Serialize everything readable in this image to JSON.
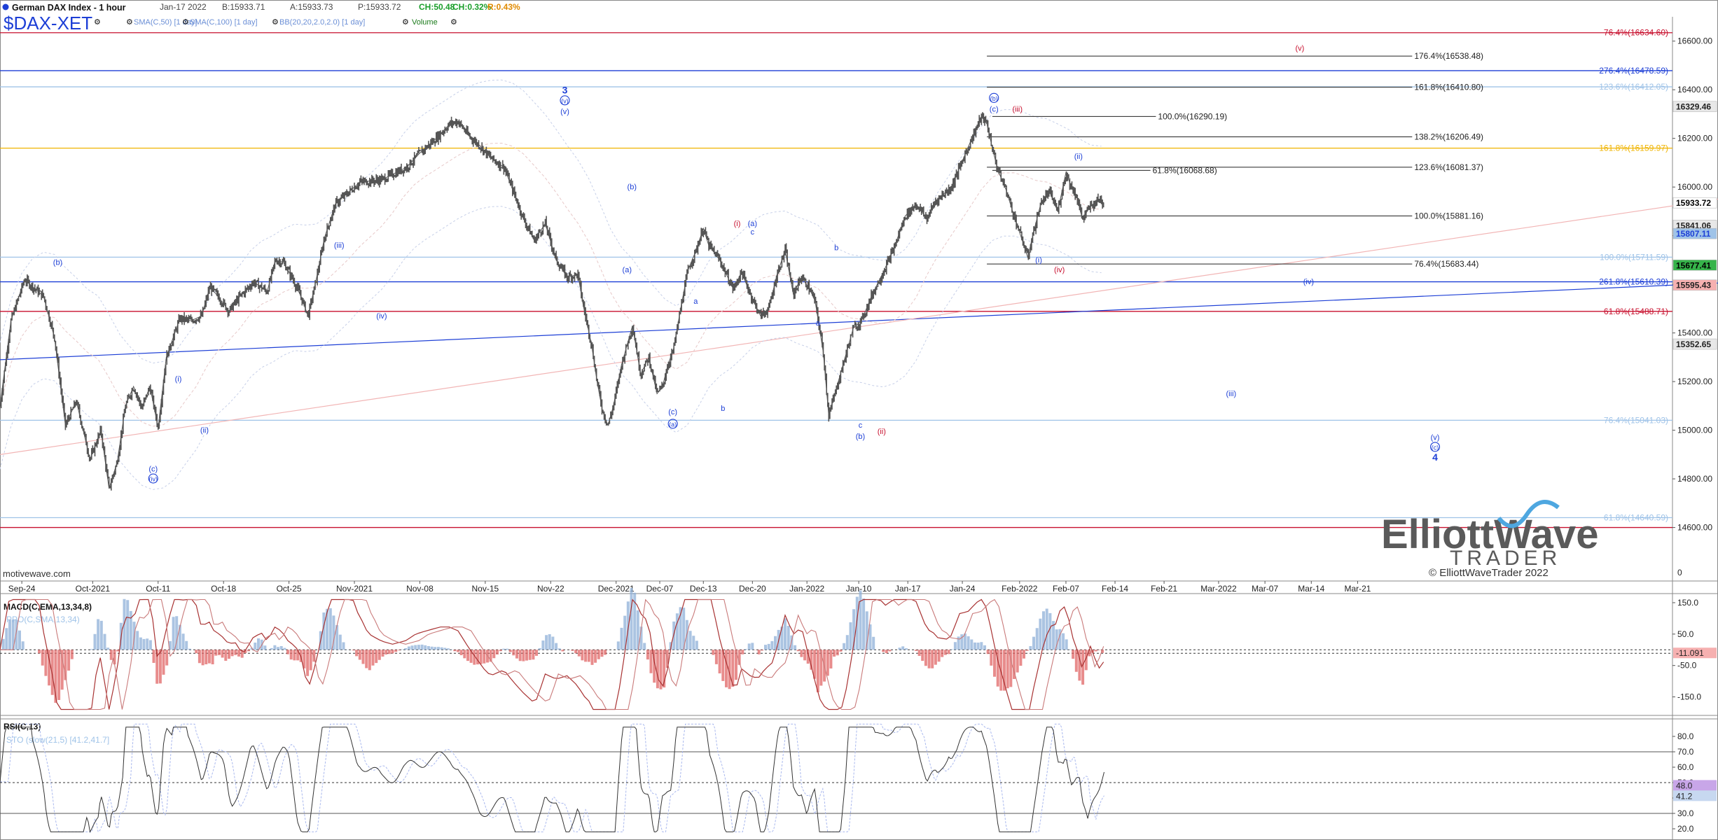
{
  "header": {
    "instrument": "German DAX Index - 1 hour",
    "date": "Jan-17 2022",
    "bid": "B:15933.71",
    "ask": "A:15933.73",
    "price": "P:15933.72",
    "change": "CH:50.48",
    "change_pct": "CH:0.32%",
    "range": "R:0.43%",
    "symbol": "$DAX-XET",
    "studies": [
      "SMA(C,50) [1 day]",
      "SMA(C,100) [1 day]",
      "BB(20,20,2.0,2.0) [1 day]",
      "Volume"
    ]
  },
  "watermark": "motivewave.com",
  "logo": {
    "line1": "ElliottWave",
    "line2": "TRADER",
    "copyright": "© ElliottWaveTrader 2022"
  },
  "colors": {
    "price": "#555555",
    "blue": "#1d3fd6",
    "red": "#c8102e",
    "orange": "#f0b400",
    "light_blue": "#9fc3e8",
    "pink": "#f2b5b5"
  },
  "chart_data": {
    "type": "line",
    "title": "German DAX Index - 1 hour",
    "price_axis": {
      "ylim": [
        14380,
        16700
      ],
      "ticks": [
        14600,
        14800,
        15000,
        15200,
        15400,
        15600,
        15800,
        16000,
        16200,
        16400,
        16600
      ],
      "tick_labels": [
        "14600.00",
        "14800.00",
        "15000.00",
        "15200.00",
        "15400.00",
        "15600.00",
        "15800.00",
        "16000.00",
        "16200.00",
        "16400.00",
        "16600.00"
      ],
      "badges": [
        {
          "value": 16329.46,
          "label": "16329.46",
          "color": "#e8e8e8",
          "text_color": "#222222"
        },
        {
          "value": 15933.72,
          "label": "15933.72",
          "color": "#ffffff",
          "text_color": "#000000"
        },
        {
          "value": 15841.06,
          "label": "15841.06",
          "color": "#e8e8e8",
          "text_color": "#222222"
        },
        {
          "value": 15807.11,
          "label": "15807.11",
          "color": "#9fc3e8",
          "text_color": "#1d3fd6"
        },
        {
          "value": 15677.41,
          "label": "15677.41",
          "color": "#36b34a",
          "text_color": "#000000"
        },
        {
          "value": 15595.43,
          "label": "15595.43",
          "color": "#f6b0b0",
          "text_color": "#222222"
        },
        {
          "value": 15352.65,
          "label": "15352.65",
          "color": "#e8e8e8",
          "text_color": "#222222"
        }
      ]
    },
    "time_axis": {
      "labels": [
        "Sep-24",
        "Oct-2021",
        "Oct-11",
        "Oct-18",
        "Oct-25",
        "Nov-2021",
        "Nov-08",
        "Nov-15",
        "Nov-22",
        "Dec-2021",
        "Dec-07",
        "Dec-13",
        "Dec-20",
        "Jan-2022",
        "Jan-10",
        "Jan-17",
        "Jan-24",
        "Feb-2022",
        "Feb-07",
        "Feb-14",
        "Feb-21",
        "Mar-2022",
        "Mar-07",
        "Mar-14",
        "Mar-21"
      ],
      "index": [
        40,
        170,
        290,
        410,
        530,
        650,
        770,
        890,
        1010,
        1130,
        1210,
        1290,
        1380,
        1480,
        1575,
        1665,
        1765,
        1870,
        1955,
        2045,
        2135,
        2235,
        2320,
        2405,
        2490
      ]
    },
    "price_series": {
      "name": "DAX",
      "points": [
        [
          0,
          15100
        ],
        [
          20,
          15450
        ],
        [
          45,
          15620
        ],
        [
          80,
          15550
        ],
        [
          100,
          15380
        ],
        [
          120,
          15020
        ],
        [
          140,
          15120
        ],
        [
          165,
          14880
        ],
        [
          185,
          15000
        ],
        [
          200,
          14760
        ],
        [
          215,
          14870
        ],
        [
          230,
          15100
        ],
        [
          245,
          15180
        ],
        [
          260,
          15090
        ],
        [
          275,
          15180
        ],
        [
          290,
          15010
        ],
        [
          305,
          15300
        ],
        [
          330,
          15460
        ],
        [
          350,
          15450
        ],
        [
          370,
          15470
        ],
        [
          385,
          15590
        ],
        [
          400,
          15550
        ],
        [
          420,
          15490
        ],
        [
          440,
          15550
        ],
        [
          465,
          15610
        ],
        [
          490,
          15570
        ],
        [
          505,
          15700
        ],
        [
          520,
          15690
        ],
        [
          535,
          15630
        ],
        [
          550,
          15560
        ],
        [
          565,
          15470
        ],
        [
          580,
          15620
        ],
        [
          595,
          15790
        ],
        [
          615,
          15930
        ],
        [
          640,
          15980
        ],
        [
          660,
          16020
        ],
        [
          700,
          16030
        ],
        [
          745,
          16080
        ],
        [
          770,
          16140
        ],
        [
          800,
          16200
        ],
        [
          825,
          16260
        ],
        [
          840,
          16270
        ],
        [
          860,
          16210
        ],
        [
          880,
          16170
        ],
        [
          900,
          16120
        ],
        [
          925,
          16080
        ],
        [
          960,
          15870
        ],
        [
          980,
          15780
        ],
        [
          1000,
          15850
        ],
        [
          1020,
          15700
        ],
        [
          1040,
          15630
        ],
        [
          1060,
          15640
        ],
        [
          1070,
          15510
        ],
        [
          1085,
          15350
        ],
        [
          1095,
          15200
        ],
        [
          1105,
          15080
        ],
        [
          1115,
          15020
        ],
        [
          1125,
          15100
        ],
        [
          1140,
          15270
        ],
        [
          1160,
          15430
        ],
        [
          1175,
          15230
        ],
        [
          1190,
          15300
        ],
        [
          1205,
          15150
        ],
        [
          1215,
          15180
        ],
        [
          1225,
          15270
        ],
        [
          1235,
          15330
        ],
        [
          1250,
          15520
        ],
        [
          1262,
          15660
        ],
        [
          1275,
          15730
        ],
        [
          1290,
          15830
        ],
        [
          1300,
          15760
        ],
        [
          1320,
          15700
        ],
        [
          1345,
          15580
        ],
        [
          1360,
          15650
        ],
        [
          1380,
          15540
        ],
        [
          1395,
          15470
        ],
        [
          1410,
          15500
        ],
        [
          1425,
          15640
        ],
        [
          1440,
          15740
        ],
        [
          1455,
          15560
        ],
        [
          1470,
          15630
        ],
        [
          1485,
          15580
        ],
        [
          1495,
          15530
        ],
        [
          1510,
          15320
        ],
        [
          1520,
          15060
        ],
        [
          1530,
          15140
        ],
        [
          1545,
          15260
        ],
        [
          1565,
          15420
        ],
        [
          1580,
          15450
        ],
        [
          1600,
          15560
        ],
        [
          1620,
          15650
        ],
        [
          1640,
          15750
        ],
        [
          1660,
          15880
        ],
        [
          1680,
          15930
        ],
        [
          1700,
          15870
        ],
        [
          1715,
          15940
        ],
        [
          1730,
          15970
        ],
        [
          1745,
          16000
        ],
        [
          1760,
          16080
        ],
        [
          1775,
          16160
        ],
        [
          1790,
          16240
        ],
        [
          1800,
          16290
        ],
        [
          1810,
          16260
        ],
        [
          1820,
          16160
        ],
        [
          1830,
          16070
        ],
        [
          1845,
          15990
        ],
        [
          1860,
          15880
        ],
        [
          1875,
          15780
        ],
        [
          1885,
          15710
        ],
        [
          1895,
          15810
        ],
        [
          1910,
          15940
        ],
        [
          1925,
          15980
        ],
        [
          1940,
          15900
        ],
        [
          1955,
          16060
        ],
        [
          1965,
          16000
        ],
        [
          1975,
          15960
        ],
        [
          1985,
          15870
        ],
        [
          2000,
          15920
        ],
        [
          2015,
          15950
        ],
        [
          2025,
          15933.72
        ]
      ]
    },
    "horizontal_levels": [
      {
        "value": 16634.6,
        "label": "76.4%(16634.60)",
        "color": "#c8102e",
        "style": "solid"
      },
      {
        "value": 16478.59,
        "label": "276.4%(16478.59)",
        "color": "#1d3fd6",
        "style": "solid"
      },
      {
        "value": 16412.05,
        "label": "123.6%(16412.05)",
        "color": "#9fc3e8",
        "style": "solid"
      },
      {
        "value": 16159.97,
        "label": "161.8%(16159.97)",
        "color": "#f0b400",
        "style": "solid"
      },
      {
        "value": 15711.59,
        "label": "100.0%(15711.59)",
        "color": "#9fc3e8",
        "style": "solid"
      },
      {
        "value": 15610.39,
        "label": "261.8%(15610.39)",
        "color": "#1d3fd6",
        "style": "solid"
      },
      {
        "value": 15488.71,
        "label": "61.8%(15488.71)",
        "color": "#c8102e",
        "style": "solid"
      },
      {
        "value": 15041.03,
        "label": "76.4%(15041.03)",
        "color": "#9fc3e8",
        "style": "solid"
      },
      {
        "value": 14640.59,
        "label": "61.8%(14640.59)",
        "color": "#9fc3e8",
        "style": "solid"
      },
      {
        "value": 14600.0,
        "label": "",
        "color": "#c8102e",
        "style": "solid"
      }
    ],
    "fib_lines": [
      {
        "x1": 1810,
        "x2": 2590,
        "value": 16538.48,
        "label": "176.4%(16538.48)"
      },
      {
        "x1": 1810,
        "x2": 2590,
        "value": 16410.8,
        "label": "161.8%(16410.80)"
      },
      {
        "x1": 1820,
        "x2": 2120,
        "value": 16290.19,
        "label": "100.0%(16290.19)"
      },
      {
        "x1": 1810,
        "x2": 2590,
        "value": 16206.49,
        "label": "138.2%(16206.49)"
      },
      {
        "x1": 1810,
        "x2": 2590,
        "value": 16081.37,
        "label": "123.6%(16081.37)"
      },
      {
        "x1": 1820,
        "x2": 2110,
        "value": 16068.68,
        "label": "61.8%(16068.68)"
      },
      {
        "x1": 1810,
        "x2": 2590,
        "value": 15881.16,
        "label": "100.0%(15881.16)"
      },
      {
        "x1": 1810,
        "x2": 2590,
        "value": 15683.44,
        "label": "76.4%(15683.44)"
      }
    ],
    "trendlines": [
      {
        "x1": 0,
        "y1": 15290,
        "x2": 3300,
        "y2": 15620,
        "color": "#1d3fd6"
      },
      {
        "x1": 0,
        "y1": 14900,
        "x2": 3300,
        "y2": 16000,
        "color": "#f2b5b5"
      }
    ],
    "wave_labels": [
      {
        "x": 106,
        "v": 15680,
        "text": "(b)",
        "color": "blue"
      },
      {
        "x": 327,
        "v": 15200,
        "text": "(i)",
        "color": "blue"
      },
      {
        "x": 375,
        "v": 14990,
        "text": "(ii)",
        "color": "blue"
      },
      {
        "x": 281,
        "v": 14830,
        "text": "(c)",
        "color": "blue"
      },
      {
        "x": 281,
        "v": 14790,
        "text": "(iv)",
        "color": "blue",
        "circle": true
      },
      {
        "x": 622,
        "v": 15750,
        "text": "(iii)",
        "color": "blue"
      },
      {
        "x": 700,
        "v": 15460,
        "text": "(iv)",
        "color": "blue"
      },
      {
        "x": 1036,
        "v": 16385,
        "text": "3",
        "color": "blue",
        "bold": true
      },
      {
        "x": 1036,
        "v": 16345,
        "text": "(v)",
        "color": "blue",
        "circle": true
      },
      {
        "x": 1036,
        "v": 16300,
        "text": "(v)",
        "color": "blue"
      },
      {
        "x": 1159,
        "v": 15990,
        "text": "(b)",
        "color": "blue"
      },
      {
        "x": 1150,
        "v": 15650,
        "text": "(a)",
        "color": "blue"
      },
      {
        "x": 1234,
        "v": 15065,
        "text": "(c)",
        "color": "blue"
      },
      {
        "x": 1234,
        "v": 15015,
        "text": "(a)",
        "color": "blue",
        "circle": true
      },
      {
        "x": 1276,
        "v": 15520,
        "text": "a",
        "color": "blue"
      },
      {
        "x": 1326,
        "v": 15080,
        "text": "b",
        "color": "blue"
      },
      {
        "x": 1352,
        "v": 15840,
        "text": "(i)",
        "color": "red"
      },
      {
        "x": 1380,
        "v": 15840,
        "text": "(a)",
        "color": "blue"
      },
      {
        "x": 1380,
        "v": 15805,
        "text": "c",
        "color": "blue"
      },
      {
        "x": 1534,
        "v": 15740,
        "text": "b",
        "color": "blue"
      },
      {
        "x": 1500,
        "v": 15430,
        "text": "a",
        "color": "blue"
      },
      {
        "x": 1578,
        "v": 15010,
        "text": "c",
        "color": "blue"
      },
      {
        "x": 1578,
        "v": 14965,
        "text": "(b)",
        "color": "blue"
      },
      {
        "x": 1617,
        "v": 14985,
        "text": "(ii)",
        "color": "red"
      },
      {
        "x": 1823,
        "v": 16355,
        "text": "(b)",
        "color": "blue",
        "circle": true
      },
      {
        "x": 1823,
        "v": 16310,
        "text": "(c)",
        "color": "blue"
      },
      {
        "x": 1866,
        "v": 16310,
        "text": "(iii)",
        "color": "red"
      },
      {
        "x": 1978,
        "v": 16115,
        "text": "(ii)",
        "color": "blue"
      },
      {
        "x": 1905,
        "v": 15690,
        "text": "(i)",
        "color": "blue"
      },
      {
        "x": 1943,
        "v": 15650,
        "text": "(iv)",
        "color": "red"
      },
      {
        "x": 2384,
        "v": 16560,
        "text": "(v)",
        "color": "red"
      },
      {
        "x": 2400,
        "v": 15600,
        "text": "(iv)",
        "color": "blue"
      },
      {
        "x": 2258,
        "v": 15140,
        "text": "(iii)",
        "color": "blue"
      },
      {
        "x": 2632,
        "v": 14960,
        "text": "(v)",
        "color": "blue"
      },
      {
        "x": 2632,
        "v": 14920,
        "text": "(c)",
        "color": "blue",
        "circle": true
      },
      {
        "x": 2632,
        "v": 14875,
        "text": "4",
        "color": "blue",
        "bold": true
      }
    ],
    "macd": {
      "title": "MACD(C,EMA,13,34,8)",
      "subtitle": "PPO(C,SMA,13,34)",
      "ylim": [
        -200,
        170
      ],
      "ticks": [
        150,
        50,
        -50,
        -150
      ],
      "tick_labels": [
        "150.0",
        "50.0",
        "-50.0",
        "-150.0"
      ],
      "badge": "-11.091",
      "badge_value": -11.091
    },
    "rsi": {
      "title": "RSI(C,13)",
      "subtitle": "STO (slow(21,5) [41.2,41.7]",
      "ylim": [
        15,
        90
      ],
      "ticks": [
        80,
        70,
        60,
        50,
        40,
        30,
        20
      ],
      "tick_labels": [
        "80.0",
        "70.0",
        "60.0",
        "50.0",
        "40.0",
        "30.0",
        "20.0"
      ],
      "badges": [
        {
          "value": 48.0,
          "label": "48.0",
          "color": "#c8a6e8"
        },
        {
          "value": 41.2,
          "label": "41.2",
          "color": "#c7d8f0"
        }
      ]
    }
  }
}
